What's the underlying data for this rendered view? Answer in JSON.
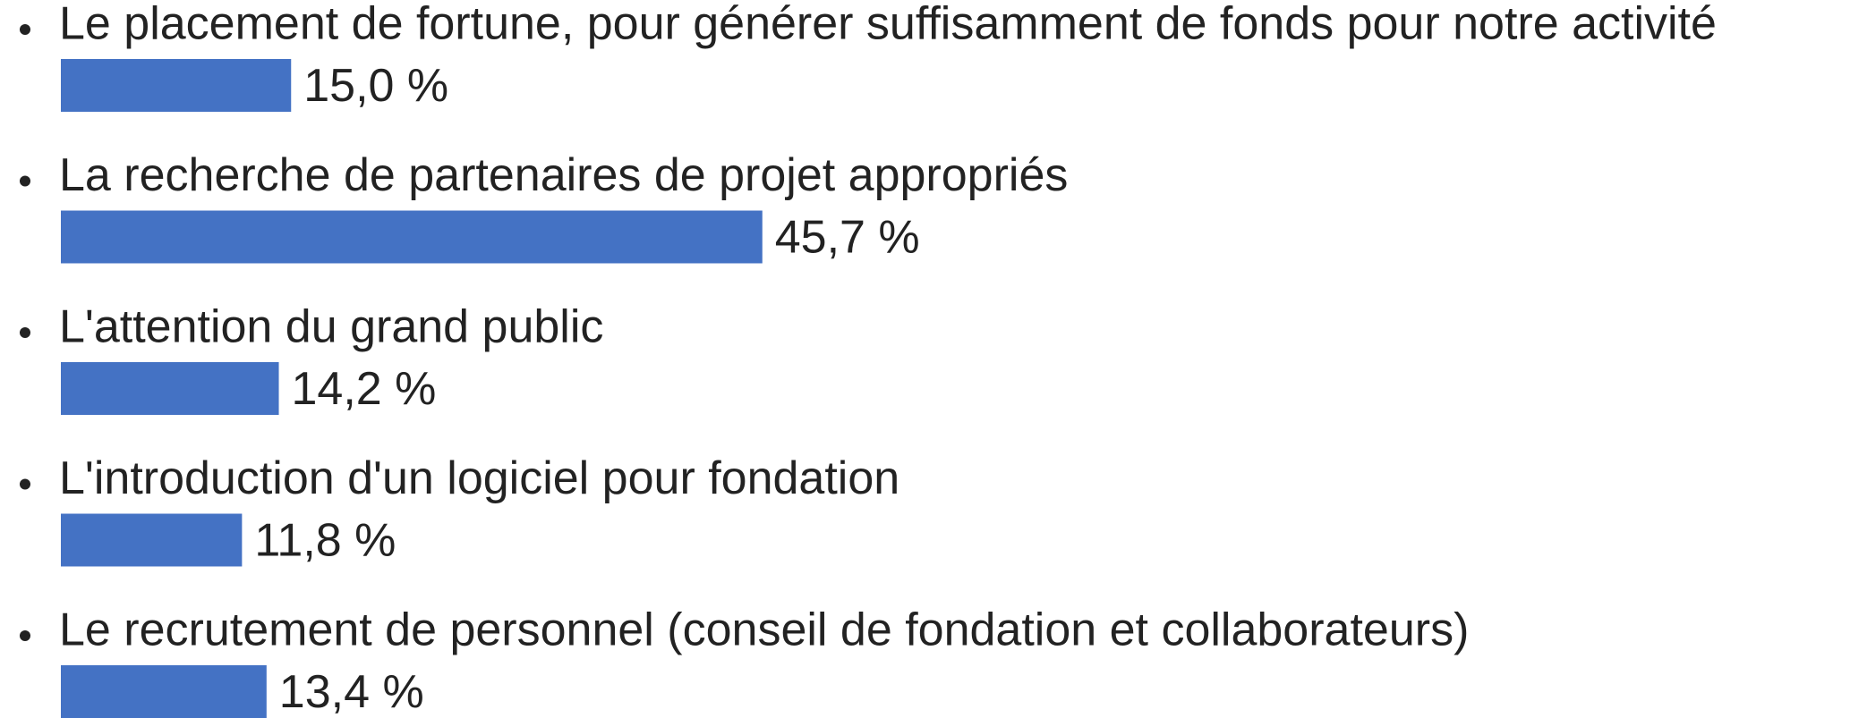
{
  "chart_data": {
    "type": "bar",
    "orientation": "horizontal",
    "categories": [
      "Le placement de fortune, pour générer suffisamment de fonds pour notre activité",
      "La recherche de partenaires de projet appropriés",
      "L'attention du grand public",
      "L'introduction d'un logiciel pour fondation",
      "Le recrutement de personnel (conseil de fondation et collaborateurs)"
    ],
    "values": [
      15.0,
      45.7,
      14.2,
      11.8,
      13.4
    ],
    "value_labels": [
      "15,0 %",
      "45,7 %",
      "14,2 %",
      "11,8 %",
      "13,4 %"
    ],
    "color": "#4472c4"
  }
}
